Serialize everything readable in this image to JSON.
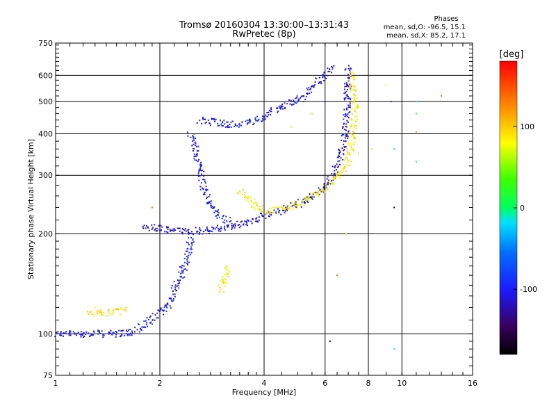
{
  "chart_data": {
    "type": "scatter",
    "title": "Tromsø 20160304 13:30:00–13:31:43",
    "subtitle": "RwPretec (8p)",
    "xlabel": "Frequency [MHz]",
    "ylabel": "Stationary phase Virtual Height [km]",
    "x_scale": "log2",
    "y_scale": "log",
    "xlim": [
      1,
      16
    ],
    "ylim": [
      75,
      750
    ],
    "x_ticks": [
      1,
      2,
      4,
      6,
      8,
      10,
      16
    ],
    "x_tick_labels": [
      "1",
      "2",
      "4",
      "6",
      "8",
      "10",
      "16"
    ],
    "y_ticks": [
      75,
      100,
      200,
      300,
      400,
      500,
      600,
      750
    ],
    "y_tick_labels": [
      "75",
      "100",
      "200",
      "300",
      "400",
      "500",
      "600",
      "750"
    ],
    "grid": true,
    "phases": {
      "title": "Phases",
      "line_o": "mean, sd,O: -96.5, 15.1",
      "line_x": "mean, sd,X: 85.2, 17.1"
    },
    "colorbar": {
      "label": "[deg]",
      "range": [
        -180,
        180
      ],
      "ticks": [
        100,
        0,
        -100
      ],
      "tick_labels": [
        "100",
        "0",
        "-100"
      ]
    },
    "traces": [
      {
        "mode": "O",
        "phase": -105,
        "points": [
          [
            1.0,
            100
          ],
          [
            1.1,
            100
          ],
          [
            1.2,
            100
          ],
          [
            1.3,
            100
          ],
          [
            1.45,
            100
          ],
          [
            1.55,
            100
          ],
          [
            1.65,
            101
          ],
          [
            1.75,
            104
          ],
          [
            1.85,
            108
          ],
          [
            1.95,
            113
          ],
          [
            2.05,
            118
          ],
          [
            2.15,
            125
          ],
          [
            2.2,
            135
          ],
          [
            2.3,
            150
          ],
          [
            2.4,
            170
          ],
          [
            2.45,
            190
          ],
          [
            2.5,
            200
          ]
        ]
      },
      {
        "mode": "O",
        "phase": -110,
        "points": [
          [
            1.8,
            210
          ],
          [
            2.0,
            207
          ],
          [
            2.2,
            205
          ],
          [
            2.4,
            204
          ],
          [
            2.6,
            204
          ],
          [
            2.8,
            205
          ],
          [
            3.0,
            208
          ],
          [
            3.2,
            210
          ],
          [
            3.4,
            214
          ],
          [
            3.6,
            218
          ],
          [
            3.9,
            224
          ],
          [
            4.2,
            230
          ],
          [
            4.6,
            237
          ],
          [
            5.0,
            245
          ],
          [
            5.4,
            256
          ],
          [
            5.8,
            270
          ],
          [
            6.1,
            285
          ],
          [
            6.4,
            305
          ],
          [
            6.6,
            330
          ],
          [
            6.8,
            380
          ],
          [
            6.9,
            430
          ],
          [
            6.95,
            500
          ],
          [
            7.0,
            580
          ],
          [
            7.0,
            640
          ]
        ]
      },
      {
        "mode": "O",
        "phase": -100,
        "points": [
          [
            2.45,
            400
          ],
          [
            2.5,
            380
          ],
          [
            2.55,
            350
          ],
          [
            2.6,
            320
          ],
          [
            2.65,
            290
          ],
          [
            2.7,
            270
          ],
          [
            2.75,
            255
          ],
          [
            2.8,
            245
          ],
          [
            2.9,
            235
          ],
          [
            3.0,
            225
          ],
          [
            3.2,
            215
          ]
        ]
      },
      {
        "mode": "O",
        "phase": -105,
        "points": [
          [
            2.6,
            440
          ],
          [
            2.8,
            435
          ],
          [
            3.0,
            430
          ],
          [
            3.2,
            428
          ],
          [
            3.5,
            430
          ],
          [
            3.8,
            440
          ],
          [
            4.1,
            460
          ],
          [
            4.4,
            480
          ],
          [
            4.8,
            500
          ],
          [
            5.2,
            520
          ],
          [
            5.6,
            560
          ],
          [
            6.0,
            610
          ],
          [
            6.3,
            640
          ]
        ]
      },
      {
        "mode": "X",
        "phase": 85,
        "points": [
          [
            3.4,
            270
          ],
          [
            3.6,
            255
          ],
          [
            3.8,
            240
          ],
          [
            4.0,
            235
          ],
          [
            4.3,
            235
          ],
          [
            4.7,
            240
          ],
          [
            5.1,
            248
          ],
          [
            5.5,
            258
          ],
          [
            5.9,
            270
          ],
          [
            6.3,
            285
          ],
          [
            6.6,
            300
          ],
          [
            6.9,
            320
          ],
          [
            7.1,
            350
          ],
          [
            7.2,
            400
          ],
          [
            7.3,
            450
          ],
          [
            7.3,
            500
          ],
          [
            7.2,
            560
          ],
          [
            7.1,
            620
          ]
        ]
      },
      {
        "mode": "X",
        "phase": 90,
        "points": [
          [
            1.25,
            115
          ],
          [
            1.3,
            117
          ],
          [
            1.35,
            116
          ],
          [
            1.45,
            116
          ],
          [
            1.55,
            117
          ],
          [
            1.6,
            118
          ]
        ]
      },
      {
        "mode": "X",
        "phase": 80,
        "points": [
          [
            3.0,
            135
          ],
          [
            3.05,
            140
          ],
          [
            3.1,
            150
          ],
          [
            3.15,
            160
          ]
        ]
      }
    ],
    "scatter_points": [
      [
        5.2,
        500,
        -100
      ],
      [
        6.0,
        500,
        -105
      ],
      [
        5.5,
        460,
        60
      ],
      [
        4.8,
        420,
        60
      ],
      [
        6.9,
        200,
        60
      ],
      [
        7.5,
        350,
        60
      ],
      [
        8.2,
        360,
        60
      ],
      [
        9.0,
        560,
        80
      ],
      [
        9.3,
        500,
        -100
      ],
      [
        9.5,
        360,
        -30
      ],
      [
        9.5,
        240,
        -170
      ],
      [
        11.0,
        500,
        -20
      ],
      [
        11.0,
        460,
        30
      ],
      [
        11.0,
        405,
        120
      ],
      [
        11.0,
        330,
        -20
      ],
      [
        13.0,
        520,
        140
      ],
      [
        6.2,
        95,
        -170
      ],
      [
        9.5,
        90,
        -10
      ],
      [
        1.9,
        240,
        140
      ],
      [
        6.5,
        150,
        140
      ]
    ]
  }
}
